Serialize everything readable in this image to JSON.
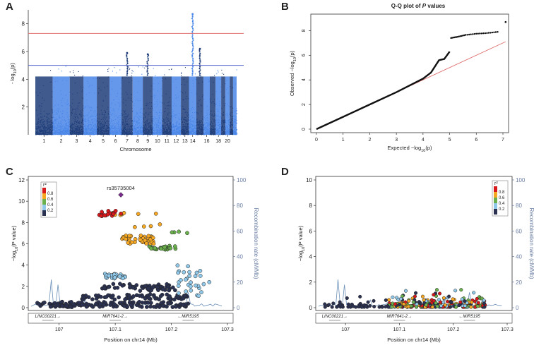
{
  "chart_data": [
    {
      "type": "scatter",
      "panel": "A",
      "subtype": "manhattan",
      "xlabel": "Chromosome",
      "ylabel": "-log10(p)",
      "ylim": [
        0,
        9
      ],
      "yticks": [
        "2",
        "4",
        "6",
        "8"
      ],
      "x_tick_labels": [
        "1",
        "2",
        "3",
        "4",
        "5",
        "6",
        "7",
        "8",
        "9",
        "10",
        "11",
        "12",
        "13",
        "14",
        "16",
        "18",
        "20"
      ],
      "chromosomes": [
        "1",
        "2",
        "3",
        "4",
        "5",
        "6",
        "7",
        "8",
        "9",
        "10",
        "11",
        "12",
        "13",
        "14",
        "15",
        "16",
        "17",
        "18",
        "19",
        "20",
        "21",
        "22"
      ],
      "genome_wide_line": 7.3,
      "suggestive_line": 5.0,
      "colors": [
        "#1f3d7a",
        "#4a86e8"
      ],
      "peaks": [
        {
          "chromosome": "9",
          "max": 5.8
        },
        {
          "chromosome": "14",
          "max": 8.7
        },
        {
          "chromosome": "15",
          "max": 6.2
        },
        {
          "chromosome": "7",
          "max": 5.9
        }
      ]
    },
    {
      "type": "scatter",
      "panel": "B",
      "subtype": "qq",
      "title_prefix": "Q-Q plot of ",
      "title_italic": "P",
      "title_suffix": " values",
      "xlabel": "Expected -log10(p)",
      "ylabel": "Observed -log10(p)",
      "xlim": [
        0,
        7
      ],
      "ylim": [
        0,
        9
      ],
      "xticks": [
        "0",
        "1",
        "2",
        "3",
        "4",
        "5",
        "6",
        "7"
      ],
      "yticks": [
        "0",
        "2",
        "4",
        "6",
        "8"
      ],
      "points": [
        [
          0,
          0
        ],
        [
          1,
          1
        ],
        [
          2,
          2
        ],
        [
          3,
          3
        ],
        [
          3.5,
          3.55
        ],
        [
          4,
          4.1
        ],
        [
          4.3,
          4.6
        ],
        [
          4.6,
          5.6
        ],
        [
          4.8,
          5.7
        ],
        [
          5,
          6.3
        ],
        [
          5.05,
          7.4
        ],
        [
          5.3,
          7.5
        ],
        [
          5.6,
          7.65
        ],
        [
          6,
          7.75
        ],
        [
          6.4,
          7.8
        ],
        [
          6.8,
          7.9
        ],
        [
          7.1,
          8.7
        ]
      ],
      "diagonal_color": "#e06c6c"
    },
    {
      "type": "scatter",
      "panel": "C",
      "subtype": "regional",
      "lead_snp": "rs35735004",
      "xlabel": "Position on chr14 (Mb)",
      "ylabel": "-log10(P value)",
      "right_ylabel": "Recombination rate (cM/Mb)",
      "xlim": [
        106.95,
        107.3
      ],
      "xticks": [
        "107",
        "107.1",
        "107.2",
        "107.3"
      ],
      "ylim": [
        0,
        12
      ],
      "yticks": [
        "0",
        "2",
        "4",
        "6",
        "8",
        "10",
        "12"
      ],
      "right_yticks": [
        "0",
        "20",
        "40",
        "60",
        "80",
        "100"
      ],
      "legend_title": "r²",
      "legend_ticks": [
        "0.8",
        "0.6",
        "0.4",
        "0.2"
      ],
      "genes": [
        {
          "label": "LINC00221→",
          "pos": 106.98
        },
        {
          "label": "MIR7641-2→",
          "pos": 107.1
        },
        {
          "label": "←MIR5195",
          "pos": 107.23
        }
      ],
      "clusters": [
        {
          "r2": "red",
          "x": [
            107.07,
            107.1
          ],
          "y": 8.8
        },
        {
          "r2": "orange",
          "x": [
            107.12,
            107.16
          ],
          "y": 6.3
        },
        {
          "r2": "green",
          "x": [
            107.17,
            107.2
          ],
          "y": 5.5
        },
        {
          "r2": "lightblue",
          "x": [
            107.09,
            107.16
          ],
          "y": 2.8
        },
        {
          "r2": "navy",
          "x": [
            107.05,
            107.23
          ],
          "y": 0.8
        }
      ],
      "lead": {
        "x": 107.11,
        "y": 10.6
      }
    },
    {
      "type": "scatter",
      "panel": "D",
      "subtype": "regional",
      "xlabel": "Position on chr14 (Mb)",
      "ylabel": "-log10(P value)",
      "right_ylabel": "Recombination rate (cM/Mb)",
      "xlim": [
        106.95,
        107.3
      ],
      "xticks": [
        "107",
        "107.1",
        "107.2",
        "107.3"
      ],
      "ylim": [
        0,
        10
      ],
      "yticks": [
        "0",
        "2",
        "4",
        "6",
        "8",
        "10"
      ],
      "right_yticks": [
        "0",
        "20",
        "40",
        "60",
        "80",
        "100"
      ],
      "legend_title": "r²",
      "legend_ticks": [
        "0.8",
        "0.6",
        "0.4",
        "0.2"
      ],
      "genes": [
        {
          "label": "LINC00221→",
          "pos": 106.98
        },
        {
          "label": "MIR7641-2→",
          "pos": 107.1
        },
        {
          "label": "←MIR5195",
          "pos": 107.23
        }
      ],
      "max_y": 1.5
    }
  ],
  "panels": {
    "A": "A",
    "B": "B",
    "C": "C",
    "D": "D"
  },
  "colors": {
    "red": "#d7191c",
    "orange": "#f7a823",
    "green": "#6ab04c",
    "lightblue": "#8fc8e8",
    "navy": "#2b3251",
    "recomb": "#6b8fb8",
    "gw_line": "#e07070",
    "sugg_line": "#5566cc"
  }
}
